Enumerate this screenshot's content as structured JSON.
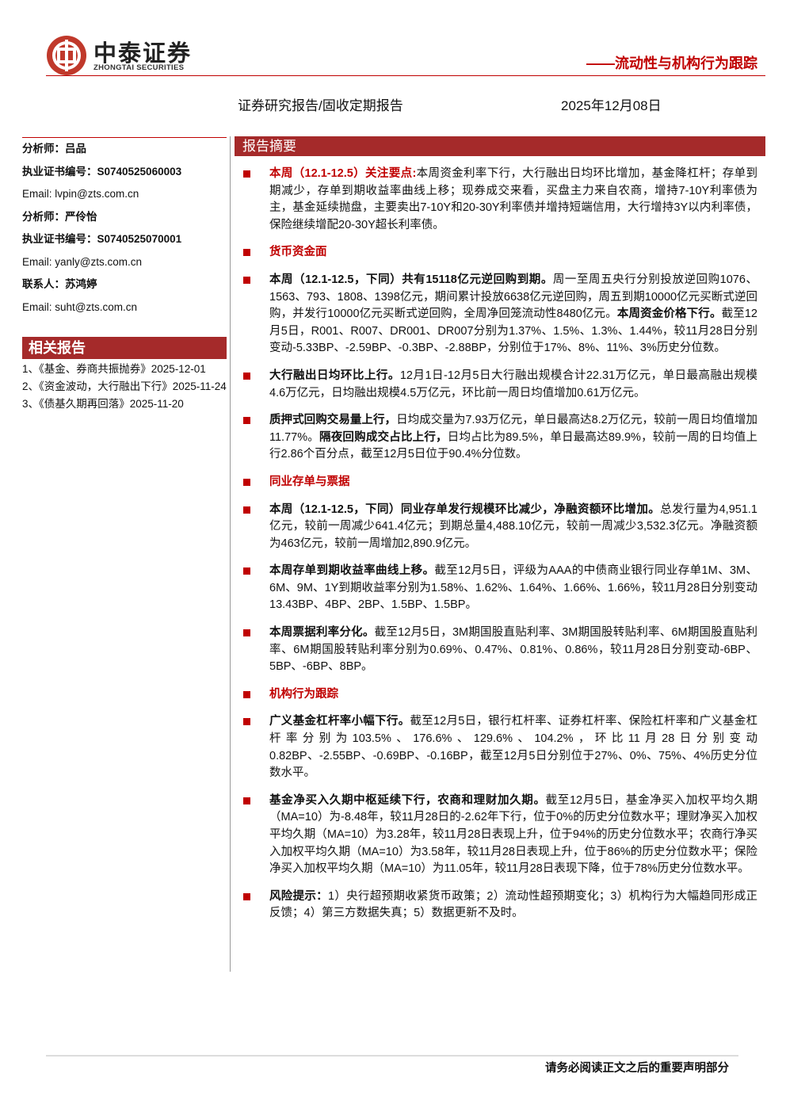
{
  "header": {
    "logo_name": "中泰证券",
    "logo_sub": "ZHONGTAI SECURITIES",
    "series_title": "——流动性与机构行为跟踪",
    "report_type": "证券研究报告/固收定期报告",
    "date": "2025年12月08日"
  },
  "sidebar": {
    "contacts": [
      {
        "label": "分析师：",
        "value": "吕品",
        "bold": true
      },
      {
        "label": "执业证书编号：",
        "value": "S0740525060003",
        "bold": true
      },
      {
        "label": "Email: ",
        "value": "lvpin@zts.com.cn",
        "bold": false
      },
      {
        "label": "分析师：",
        "value": "严伶怡",
        "bold": true
      },
      {
        "label": "执业证书编号：",
        "value": "S0740525070001",
        "bold": true
      },
      {
        "label": "Email: ",
        "value": "yanly@zts.com.cn",
        "bold": false
      },
      {
        "label": "联系人：",
        "value": "苏鸿婷",
        "bold": true
      },
      {
        "label": "Email: ",
        "value": "suht@zts.com.cn",
        "bold": false
      }
    ],
    "related_title": "相关报告",
    "related": [
      "1、《基金、券商共振抛券》2025-12-01",
      "2、《资金波动，大行融出下行》2025-11-24",
      "3、《债基久期再回落》2025-11-20"
    ]
  },
  "summary": {
    "title": "报告摘要",
    "items": [
      {
        "type": "paragraph",
        "runs": [
          {
            "text": "本周（12.1-12.5）关注要点:",
            "style": "red"
          },
          {
            "text": "本周资金利率下行，大行融出日均环比增加，基金降杠杆；存单到期减少，存单到期收益率曲线上移；现券成交来看，买盘主力来自农商，增持7-10Y利率债为主，基金延续抛盘，主要卖出7-10Y和20-30Y利率债并增持短端信用，大行增持3Y以内利率债，保险继续增配20-30Y超长利率债。"
          }
        ]
      },
      {
        "type": "heading",
        "text": "货币资金面"
      },
      {
        "type": "paragraph",
        "runs": [
          {
            "text": "本周（12.1-12.5，下同）共有15118亿元逆回购到期。",
            "style": "bold"
          },
          {
            "text": "周一至周五央行分别投放逆回购1076、1563、793、1808、1398亿元，期间累计投放6638亿元逆回购，周五到期10000亿元买断式逆回购，并发行10000亿元买断式逆回购，全周净回笼流动性8480亿元。"
          },
          {
            "text": "本周资金价格下行。",
            "style": "bold"
          },
          {
            "text": "截至12月5日，R001、R007、DR001、DR007分别为1.37%、1.5%、1.3%、1.44%，较11月28日分别变动-5.33BP、-2.59BP、-0.3BP、-2.88BP，分别位于17%、8%、11%、3%历史分位数。"
          }
        ]
      },
      {
        "type": "paragraph",
        "runs": [
          {
            "text": "大行融出日均环比上行。",
            "style": "bold"
          },
          {
            "text": "12月1日-12月5日大行融出规模合计22.31万亿元，单日最高融出规模4.6万亿元，日均融出规模4.5万亿元，环比前一周日均值增加0.61万亿元。"
          }
        ]
      },
      {
        "type": "paragraph",
        "runs": [
          {
            "text": "质押式回购交易量上行，",
            "style": "bold"
          },
          {
            "text": "日均成交量为7.93万亿元，单日最高达8.2万亿元，较前一周日均值增加11.77%。"
          },
          {
            "text": "隔夜回购成交占比上行，",
            "style": "bold"
          },
          {
            "text": "日均占比为89.5%，单日最高达89.9%，较前一周的日均值上行2.86个百分点，截至12月5日位于90.4%分位数。"
          }
        ]
      },
      {
        "type": "heading",
        "text": "同业存单与票据"
      },
      {
        "type": "paragraph",
        "runs": [
          {
            "text": "本周（12.1-12.5，下同）同业存单发行规模环比减少，净融资额环比增加。",
            "style": "bold"
          },
          {
            "text": "总发行量为4,951.1亿元，较前一周减少641.4亿元；到期总量4,488.10亿元，较前一周减少3,532.3亿元。净融资额为463亿元，较前一周增加2,890.9亿元。"
          }
        ]
      },
      {
        "type": "paragraph",
        "runs": [
          {
            "text": "本周存单到期收益率曲线上移。",
            "style": "bold"
          },
          {
            "text": "截至12月5日，评级为AAA的中债商业银行同业存单1M、3M、6M、9M、1Y到期收益率分别为1.58%、1.62%、1.64%、1.66%、1.66%，较11月28日分别变动13.43BP、4BP、2BP、1.5BP、1.5BP。"
          }
        ]
      },
      {
        "type": "paragraph",
        "runs": [
          {
            "text": "本周票据利率分化。",
            "style": "bold"
          },
          {
            "text": "截至12月5日，3M期国股直贴利率、3M期国股转贴利率、6M期国股直贴利率、6M期国股转贴利率分别为0.69%、0.47%、0.81%、0.86%，较11月28日分别变动-6BP、5BP、-6BP、8BP。"
          }
        ]
      },
      {
        "type": "heading",
        "text": "机构行为跟踪"
      },
      {
        "type": "paragraph",
        "runs": [
          {
            "text": "广义基金杠杆率小幅下行。",
            "style": "bold"
          },
          {
            "text": "截至12月5日，银行杠杆率、证券杠杆率、保险杠杆率和广义基金杠杆率分别为103.5%、176.6%、129.6%、104.2%，环比11月28日分别变动0.82BP、-2.55BP、-0.69BP、-0.16BP，截至12月5日分别位于27%、0%、75%、4%历史分位数水平。"
          }
        ]
      },
      {
        "type": "paragraph",
        "runs": [
          {
            "text": "基金净买入久期中枢延续下行，农商和理财加久期。",
            "style": "bold"
          },
          {
            "text": "截至12月5日，基金净买入加权平均久期（MA=10）为-8.48年，较11月28日的-2.62年下行，位于0%的历史分位数水平；理财净买入加权平均久期（MA=10）为3.28年，较11月28日表现上升，位于94%的历史分位数水平；农商行净买入加权平均久期（MA=10）为3.58年，较11月28日表现上升，位于86%的历史分位数水平；保险净买入加权平均久期（MA=10）为11.05年，较11月28日表现下降，位于78%历史分位数水平。"
          }
        ]
      },
      {
        "type": "paragraph",
        "runs": [
          {
            "text": "风险提示：",
            "style": "bold"
          },
          {
            "text": "1）央行超预期收紧货币政策；2）流动性超预期变化；3）机构行为大幅趋同形成正反馈；4）第三方数据失真；5）数据更新不及时。"
          }
        ]
      }
    ]
  },
  "footer": {
    "notice": "请务必阅读正文之后的重要声明部分"
  }
}
